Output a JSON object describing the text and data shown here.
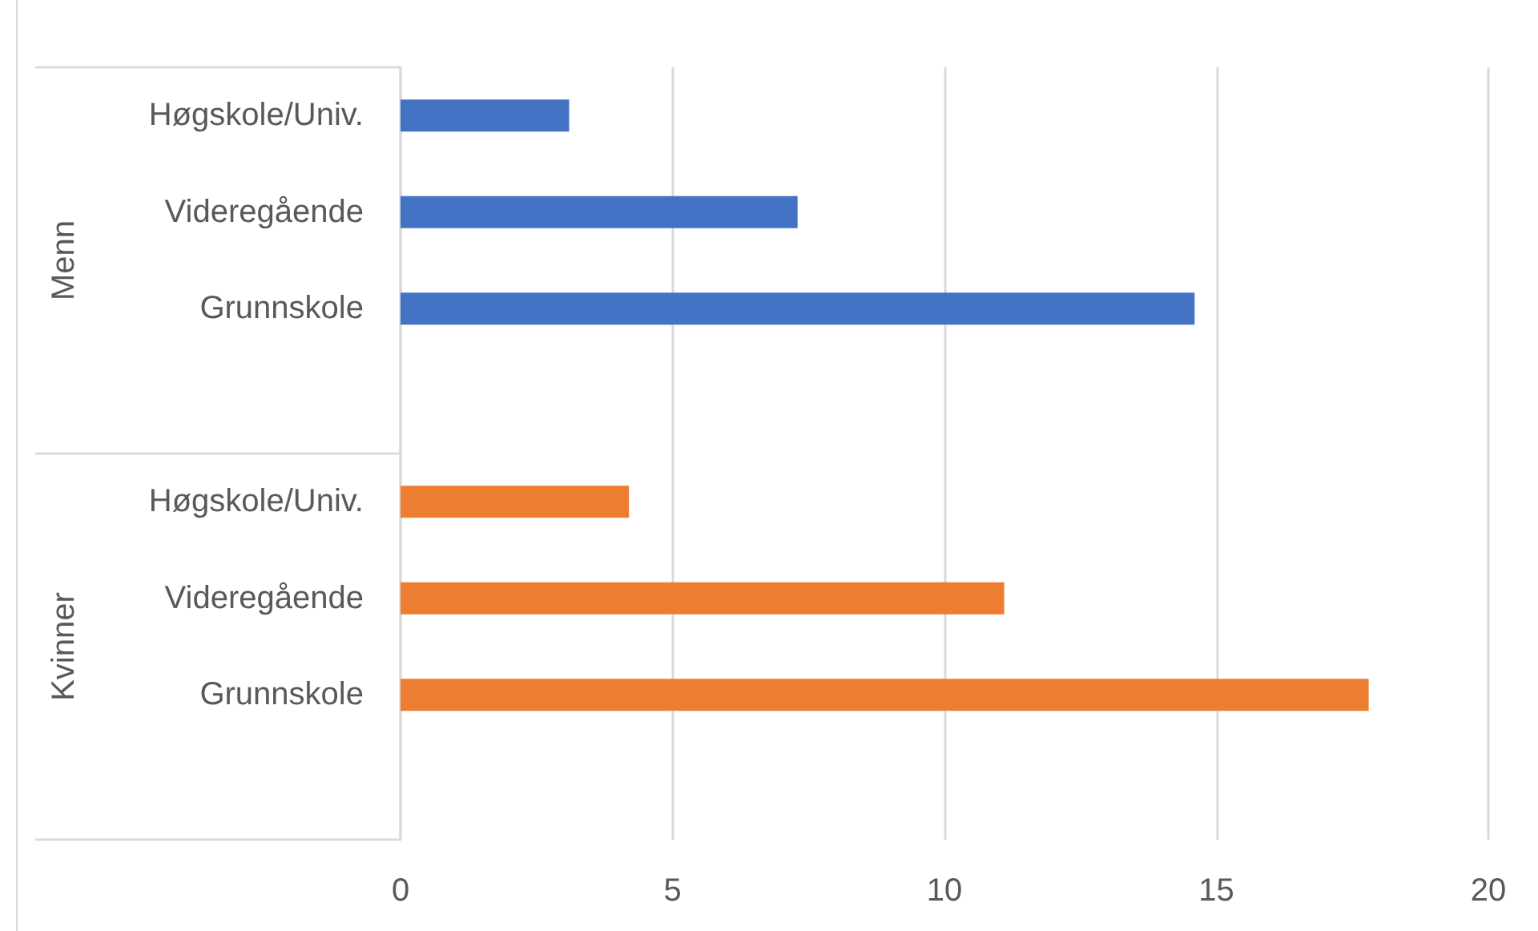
{
  "chart_data": {
    "type": "bar",
    "orientation": "horizontal",
    "categories": [
      "Høgskole/Univ.",
      "Videregående",
      "Grunnskole",
      null,
      "Høgskole/Univ.",
      "Videregående",
      "Grunnskole",
      null
    ],
    "series": [
      {
        "color": "#4472c4",
        "values": [
          3.1,
          7.3,
          14.6,
          null,
          null,
          null,
          null,
          null
        ]
      },
      {
        "color": "#ed7d31",
        "values": [
          null,
          null,
          null,
          null,
          4.2,
          11.1,
          17.8,
          null
        ]
      }
    ],
    "annotations": [
      "Menn",
      "Kvinner"
    ],
    "xlim": [
      0,
      20
    ],
    "xticks": [
      0,
      5,
      10,
      15,
      20
    ],
    "grid": "x"
  }
}
